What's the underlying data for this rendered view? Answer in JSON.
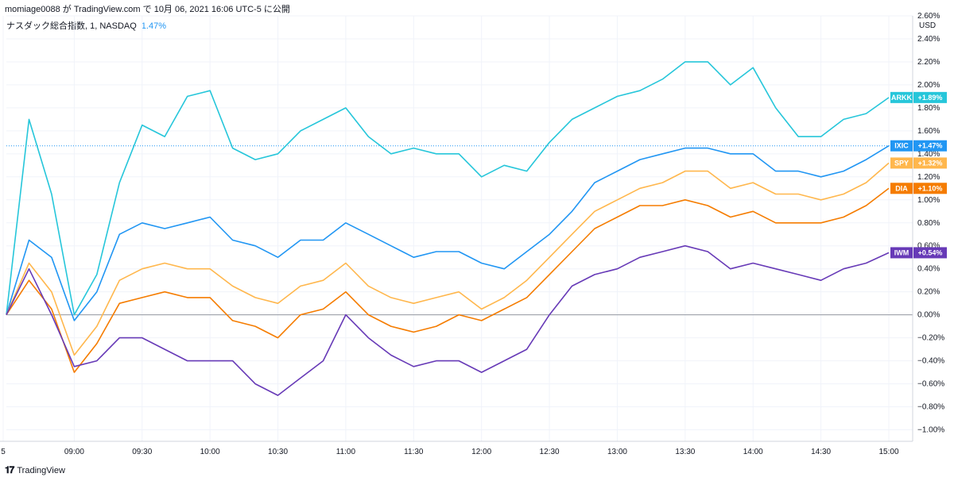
{
  "header": {
    "publish_line": "momiage0088 が TradingView.com で 10月 06, 2021 16:06 UTC-5 に公開",
    "symbol_title": "ナスダック総合指数, 1, NASDAQ",
    "symbol_change": "1.47%"
  },
  "footer": {
    "brand": "TradingView"
  },
  "chart_data": {
    "type": "line",
    "ylabel": "USD",
    "ylim": [
      -1.1,
      2.6
    ],
    "y_ticks": [
      "2.60%",
      "2.40%",
      "2.20%",
      "2.00%",
      "1.80%",
      "1.60%",
      "1.40%",
      "1.20%",
      "1.00%",
      "0.80%",
      "0.60%",
      "0.40%",
      "0.20%",
      "0.00%",
      "−0.20%",
      "−0.40%",
      "−0.60%",
      "−0.80%",
      "−1.00%"
    ],
    "y_tick_values": [
      2.6,
      2.4,
      2.2,
      2.0,
      1.8,
      1.6,
      1.4,
      1.2,
      1.0,
      0.8,
      0.6,
      0.4,
      0.2,
      0.0,
      -0.2,
      -0.4,
      -0.6,
      -0.8,
      -1.0
    ],
    "x_ticks": [
      "5",
      "09:00",
      "09:30",
      "10:00",
      "10:30",
      "11:00",
      "11:30",
      "12:00",
      "12:30",
      "13:00",
      "13:30",
      "14:00",
      "14:30",
      "15:00"
    ],
    "x": [
      "08:30",
      "08:40",
      "08:50",
      "09:00",
      "09:10",
      "09:20",
      "09:30",
      "09:40",
      "09:50",
      "10:00",
      "10:10",
      "10:20",
      "10:30",
      "10:40",
      "10:50",
      "11:00",
      "11:10",
      "11:20",
      "11:30",
      "11:40",
      "11:50",
      "12:00",
      "12:10",
      "12:20",
      "12:30",
      "12:40",
      "12:50",
      "13:00",
      "13:10",
      "13:20",
      "13:30",
      "13:40",
      "13:50",
      "14:00",
      "14:10",
      "14:20",
      "14:30",
      "14:40",
      "14:50",
      "15:00"
    ],
    "series": [
      {
        "name": "ARKK",
        "color": "#26c6da",
        "last": "+1.89%",
        "values": [
          0.0,
          1.7,
          1.05,
          0.0,
          0.35,
          1.15,
          1.65,
          1.55,
          1.9,
          1.95,
          1.45,
          1.35,
          1.4,
          1.6,
          1.7,
          1.8,
          1.55,
          1.4,
          1.45,
          1.4,
          1.4,
          1.2,
          1.3,
          1.25,
          1.5,
          1.7,
          1.8,
          1.9,
          1.95,
          2.05,
          2.2,
          2.2,
          2.0,
          2.15,
          1.8,
          1.55,
          1.55,
          1.7,
          1.75,
          1.89
        ]
      },
      {
        "name": "IXIC",
        "color": "#2196f3",
        "last": "+1.47%",
        "values": [
          0.0,
          0.65,
          0.5,
          -0.05,
          0.2,
          0.7,
          0.8,
          0.75,
          0.8,
          0.85,
          0.65,
          0.6,
          0.5,
          0.65,
          0.65,
          0.8,
          0.7,
          0.6,
          0.5,
          0.55,
          0.55,
          0.45,
          0.4,
          0.55,
          0.7,
          0.9,
          1.15,
          1.25,
          1.35,
          1.4,
          1.45,
          1.45,
          1.4,
          1.4,
          1.25,
          1.25,
          1.2,
          1.25,
          1.35,
          1.47
        ]
      },
      {
        "name": "SPY",
        "color": "#ffb74d",
        "last": "+1.32%",
        "values": [
          0.0,
          0.45,
          0.2,
          -0.35,
          -0.1,
          0.3,
          0.4,
          0.45,
          0.4,
          0.4,
          0.25,
          0.15,
          0.1,
          0.25,
          0.3,
          0.45,
          0.25,
          0.15,
          0.1,
          0.15,
          0.2,
          0.05,
          0.15,
          0.3,
          0.5,
          0.7,
          0.9,
          1.0,
          1.1,
          1.15,
          1.25,
          1.25,
          1.1,
          1.15,
          1.05,
          1.05,
          1.0,
          1.05,
          1.15,
          1.32
        ]
      },
      {
        "name": "DIA",
        "color": "#f57c00",
        "last": "+1.10%",
        "values": [
          0.0,
          0.3,
          0.05,
          -0.5,
          -0.25,
          0.1,
          0.15,
          0.2,
          0.15,
          0.15,
          -0.05,
          -0.1,
          -0.2,
          0.0,
          0.05,
          0.2,
          0.0,
          -0.1,
          -0.15,
          -0.1,
          0.0,
          -0.05,
          0.05,
          0.15,
          0.35,
          0.55,
          0.75,
          0.85,
          0.95,
          0.95,
          1.0,
          0.95,
          0.85,
          0.9,
          0.8,
          0.8,
          0.8,
          0.85,
          0.95,
          1.1
        ]
      },
      {
        "name": "IWM",
        "color": "#673ab7",
        "last": "+0.54%",
        "values": [
          0.0,
          0.4,
          0.0,
          -0.45,
          -0.4,
          -0.2,
          -0.2,
          -0.3,
          -0.4,
          -0.4,
          -0.4,
          -0.6,
          -0.7,
          -0.55,
          -0.4,
          0.0,
          -0.2,
          -0.35,
          -0.45,
          -0.4,
          -0.4,
          -0.5,
          -0.4,
          -0.3,
          0.0,
          0.25,
          0.35,
          0.4,
          0.5,
          0.55,
          0.6,
          0.55,
          0.4,
          0.45,
          0.4,
          0.35,
          0.3,
          0.4,
          0.45,
          0.54
        ]
      }
    ],
    "reference_line": 1.47,
    "grid": "vertical+horizontal"
  }
}
